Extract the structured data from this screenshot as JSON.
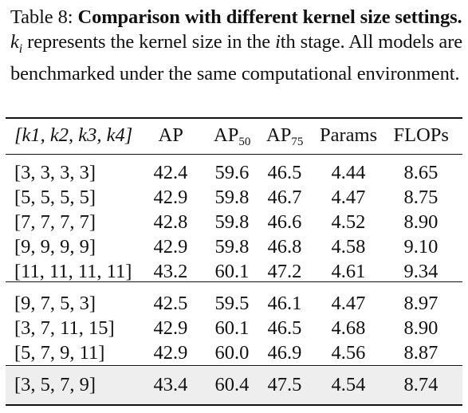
{
  "caption": {
    "label": "Table 8:",
    "title": "Comparison with different kernel size settings.",
    "var": "k",
    "var_sub": "i",
    "text_1": " represents the kernel size in the ",
    "ith": "i",
    "text_2": "th stage. All models are benchmarked under the same computational environment."
  },
  "table": {
    "headers": {
      "config": "[k1, k2, k3, k4]",
      "ap": "AP",
      "ap50_base": "AP",
      "ap50_sub": "50",
      "ap75_base": "AP",
      "ap75_sub": "75",
      "params": "Params",
      "flops": "FLOPs"
    },
    "groups": [
      [
        {
          "config": "[3, 3, 3, 3]",
          "ap": "42.4",
          "ap50": "59.6",
          "ap75": "46.5",
          "params": "4.44",
          "flops": "8.65"
        },
        {
          "config": "[5, 5, 5, 5]",
          "ap": "42.9",
          "ap50": "59.8",
          "ap75": "46.7",
          "params": "4.47",
          "flops": "8.75"
        },
        {
          "config": "[7, 7, 7, 7]",
          "ap": "42.8",
          "ap50": "59.8",
          "ap75": "46.6",
          "params": "4.52",
          "flops": "8.90"
        },
        {
          "config": "[9, 9, 9, 9]",
          "ap": "42.9",
          "ap50": "59.8",
          "ap75": "46.8",
          "params": "4.58",
          "flops": "9.10"
        },
        {
          "config": "[11, 11, 11, 11]",
          "ap": "43.2",
          "ap50": "60.1",
          "ap75": "47.2",
          "params": "4.61",
          "flops": "9.34"
        }
      ],
      [
        {
          "config": "[9, 7, 5, 3]",
          "ap": "42.5",
          "ap50": "59.5",
          "ap75": "46.1",
          "params": "4.47",
          "flops": "8.97"
        },
        {
          "config": "[3, 7, 11, 15]",
          "ap": "42.9",
          "ap50": "60.1",
          "ap75": "46.5",
          "params": "4.68",
          "flops": "8.90"
        },
        {
          "config": "[5, 7, 9, 11]",
          "ap": "42.9",
          "ap50": "60.0",
          "ap75": "46.9",
          "params": "4.56",
          "flops": "8.87"
        }
      ],
      [
        {
          "config": "[3, 5, 7, 9]",
          "ap": "43.4",
          "ap50": "60.4",
          "ap75": "47.5",
          "params": "4.54",
          "flops": "8.74"
        }
      ]
    ]
  }
}
